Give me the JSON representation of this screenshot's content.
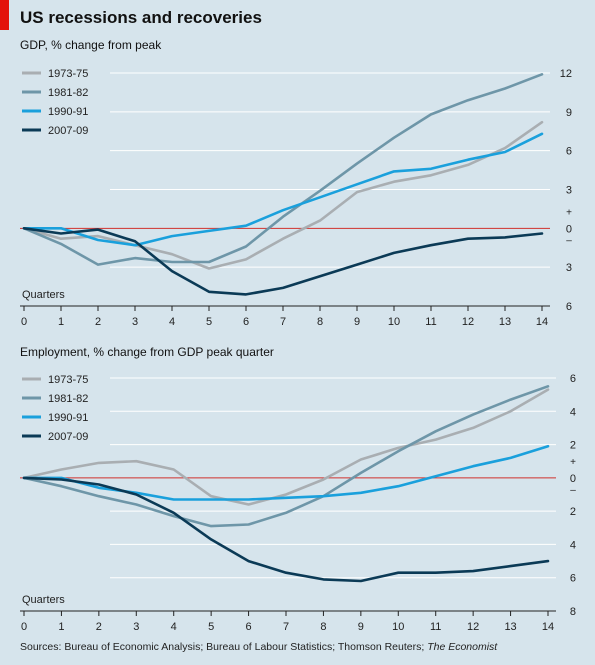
{
  "title": "US recessions and recoveries",
  "source": {
    "prefix": "Sources: Bureau of Economic Analysis; Bureau of Labour Statistics; Thomson Reuters; ",
    "publication": "The Economist"
  },
  "colors": {
    "background": "#d6e4ec",
    "grid": "#ffffff",
    "zero_line": "#d0312d",
    "s1973": "#a9aeb2",
    "s1981": "#6e96a8",
    "s1990": "#1aa0dc",
    "s2007": "#0b3a56"
  },
  "chart_data": [
    {
      "type": "line",
      "title": "GDP, % change from peak",
      "xlabel": "Quarters",
      "x": [
        0,
        1,
        2,
        3,
        4,
        5,
        6,
        7,
        8,
        9,
        10,
        11,
        12,
        13,
        14
      ],
      "xlim": [
        0,
        14
      ],
      "ylim": [
        -6,
        12
      ],
      "y_ticks": [
        12,
        9,
        6,
        3,
        0,
        -3,
        -6
      ],
      "y_tick_labels": [
        "12",
        "9",
        "6",
        "3",
        "0",
        "3",
        "6"
      ],
      "sign_markers": [
        "+",
        "–"
      ],
      "legend_position": "top-left",
      "grid": true,
      "series": [
        {
          "name": "1973-75",
          "color": "#a9aeb2",
          "values": [
            0,
            -0.8,
            -0.6,
            -1.3,
            -2.0,
            -3.1,
            -2.4,
            -0.8,
            0.6,
            2.8,
            3.6,
            4.1,
            4.9,
            6.2,
            8.2
          ]
        },
        {
          "name": "1981-82",
          "color": "#6e96a8",
          "values": [
            0,
            -1.2,
            -2.8,
            -2.3,
            -2.6,
            -2.6,
            -1.4,
            0.9,
            2.9,
            5.0,
            7.0,
            8.8,
            9.9,
            10.8,
            11.9
          ]
        },
        {
          "name": "1990-91",
          "color": "#1aa0dc",
          "values": [
            0,
            0,
            -0.9,
            -1.3,
            -0.6,
            -0.2,
            0.2,
            1.4,
            2.4,
            3.4,
            4.4,
            4.6,
            5.3,
            5.9,
            7.3
          ]
        },
        {
          "name": "2007-09",
          "color": "#0b3a56",
          "values": [
            0,
            -0.4,
            -0.1,
            -1.0,
            -3.3,
            -4.9,
            -5.1,
            -4.6,
            -3.7,
            -2.8,
            -1.9,
            -1.3,
            -0.8,
            -0.7,
            -0.4
          ]
        }
      ]
    },
    {
      "type": "line",
      "title": "Employment, % change from GDP peak quarter",
      "xlabel": "Quarters",
      "x": [
        0,
        1,
        2,
        3,
        4,
        5,
        6,
        7,
        8,
        9,
        10,
        11,
        12,
        13,
        14
      ],
      "xlim": [
        0,
        14
      ],
      "ylim": [
        -8,
        6
      ],
      "y_ticks": [
        6,
        4,
        2,
        0,
        -2,
        -4,
        -6,
        -8
      ],
      "y_tick_labels": [
        "6",
        "4",
        "2",
        "0",
        "2",
        "4",
        "6",
        "8"
      ],
      "sign_markers": [
        "+",
        "–"
      ],
      "legend_position": "top-left",
      "grid": true,
      "series": [
        {
          "name": "1973-75",
          "color": "#a9aeb2",
          "values": [
            0,
            0.5,
            0.9,
            1.0,
            0.5,
            -1.1,
            -1.6,
            -1.0,
            -0.1,
            1.1,
            1.8,
            2.3,
            3.0,
            4.0,
            5.3
          ]
        },
        {
          "name": "1981-82",
          "color": "#6e96a8",
          "values": [
            0,
            -0.5,
            -1.1,
            -1.6,
            -2.3,
            -2.9,
            -2.8,
            -2.1,
            -1.1,
            0.3,
            1.6,
            2.8,
            3.8,
            4.7,
            5.5
          ]
        },
        {
          "name": "1990-91",
          "color": "#1aa0dc",
          "values": [
            0,
            0,
            -0.6,
            -0.9,
            -1.3,
            -1.3,
            -1.3,
            -1.2,
            -1.1,
            -0.9,
            -0.5,
            0.1,
            0.7,
            1.2,
            1.9
          ]
        },
        {
          "name": "2007-09",
          "color": "#0b3a56",
          "values": [
            0,
            -0.1,
            -0.4,
            -1.0,
            -2.1,
            -3.7,
            -5.0,
            -5.7,
            -6.1,
            -6.2,
            -5.7,
            -5.7,
            -5.6,
            -5.3,
            -5.0
          ]
        }
      ]
    }
  ]
}
